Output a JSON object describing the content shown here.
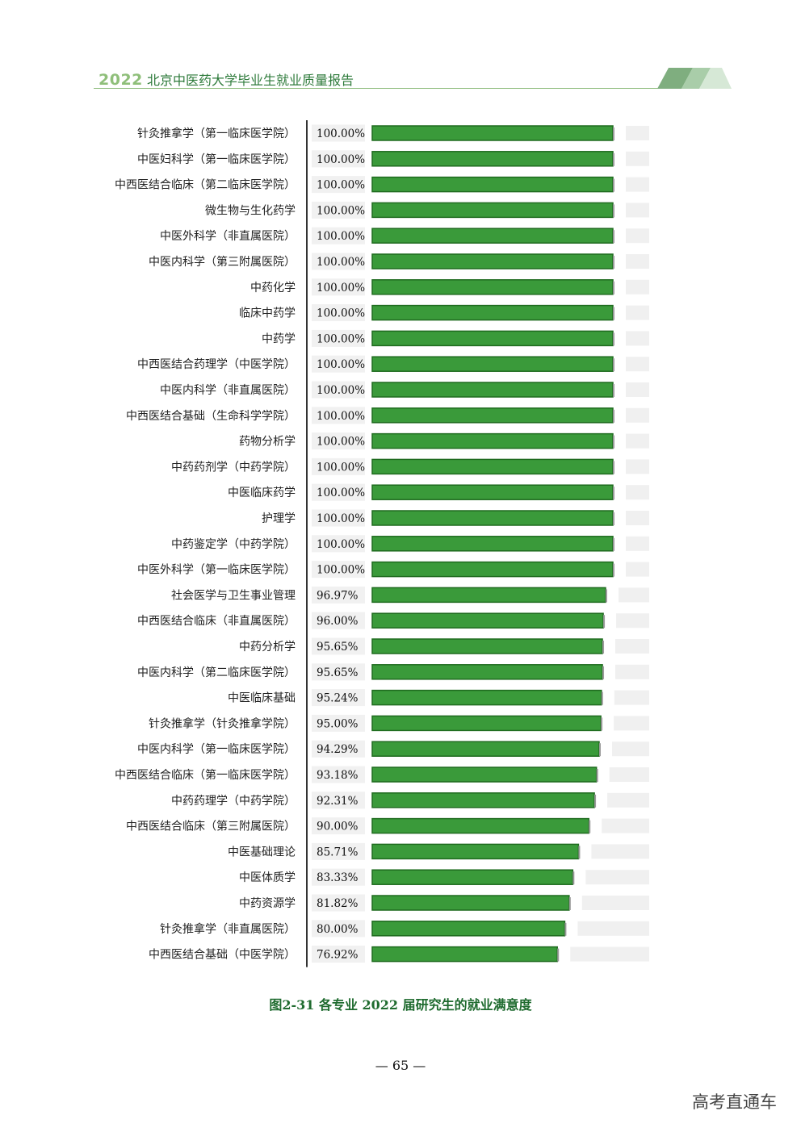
{
  "header": {
    "year": "2022",
    "title": "北京中医药大学毕业生就业质量报告",
    "accent_color": "#2d7a3a"
  },
  "chart_data": {
    "type": "bar",
    "orientation": "horizontal",
    "title": "图2-31  各专业 2022 届研究生的就业满意度",
    "xlim": [
      0,
      100
    ],
    "grid": false,
    "bar_color": "#3a9a3a",
    "track_color": "#f0f0f0",
    "categories": [
      "针灸推拿学（第一临床医学院）",
      "中医妇科学（第一临床医学院）",
      "中西医结合临床（第二临床医学院）",
      "微生物与生化药学",
      "中医外科学（非直属医院）",
      "中医内科学（第三附属医院）",
      "中药化学",
      "临床中药学",
      "中药学",
      "中西医结合药理学（中医学院）",
      "中医内科学（非直属医院）",
      "中西医结合基础（生命科学学院）",
      "药物分析学",
      "中药药剂学（中药学院）",
      "中医临床药学",
      "护理学",
      "中药鉴定学（中药学院）",
      "中医外科学（第一临床医学院）",
      "社会医学与卫生事业管理",
      "中西医结合临床（非直属医院）",
      "中药分析学",
      "中医内科学（第二临床医学院）",
      "中医临床基础",
      "针灸推拿学（针灸推拿学院）",
      "中医内科学（第一临床医学院）",
      "中西医结合临床（第一临床医学院）",
      "中药药理学（中药学院）",
      "中西医结合临床（第三附属医院）",
      "中医基础理论",
      "中医体质学",
      "中药资源学",
      "针灸推拿学（非直属医院）",
      "中西医结合基础（中医学院）"
    ],
    "values": [
      100,
      100,
      100,
      100,
      100,
      100,
      100,
      100,
      100,
      100,
      100,
      100,
      100,
      100,
      100,
      100,
      100,
      100,
      96.97,
      96.0,
      95.65,
      95.65,
      95.24,
      95.0,
      94.29,
      93.18,
      92.31,
      90.0,
      85.71,
      83.33,
      81.82,
      80.0,
      76.92
    ],
    "value_labels": [
      "100.00%",
      "100.00%",
      "100.00%",
      "100.00%",
      "100.00%",
      "100.00%",
      "100.00%",
      "100.00%",
      "100.00%",
      "100.00%",
      "100.00%",
      "100.00%",
      "100.00%",
      "100.00%",
      "100.00%",
      "100.00%",
      "100.00%",
      "100.00%",
      "96.97%",
      "96.00%",
      "95.65%",
      "95.65%",
      "95.24%",
      "95.00%",
      "94.29%",
      "93.18%",
      "92.31%",
      "90.00%",
      "85.71%",
      "83.33%",
      "81.82%",
      "80.00%",
      "76.92%"
    ]
  },
  "footer": {
    "page_number": "— 65 —",
    "watermark": "高考直通车"
  }
}
